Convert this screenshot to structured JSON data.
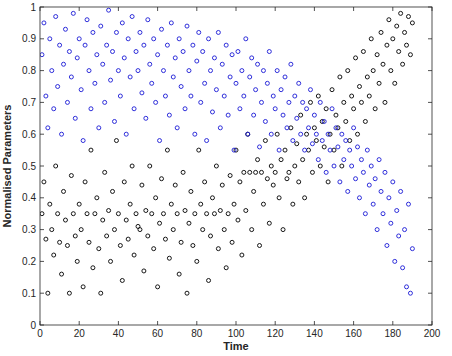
{
  "chart_data": {
    "type": "scatter",
    "x_label": "Time",
    "y_label": "Normalised Parameters",
    "xlim": [
      0,
      200
    ],
    "ylim": [
      0,
      1
    ],
    "xticks": [
      0,
      20,
      40,
      60,
      80,
      100,
      120,
      140,
      160,
      180,
      200
    ],
    "yticks": [
      0,
      0.1,
      0.2,
      0.3,
      0.4,
      0.5,
      0.6,
      0.7,
      0.8,
      0.9,
      1
    ],
    "grid": false,
    "series": [
      {
        "color": "#000000",
        "marker": "circle",
        "x": [
          1,
          2,
          3,
          4,
          5,
          6,
          7,
          8,
          9,
          10,
          11,
          12,
          13,
          14,
          15,
          16,
          17,
          18,
          19,
          20,
          21,
          22,
          23,
          24,
          25,
          26,
          27,
          28,
          29,
          30,
          31,
          32,
          33,
          34,
          35,
          36,
          37,
          38,
          39,
          40,
          41,
          42,
          43,
          44,
          45,
          46,
          47,
          48,
          49,
          50,
          51,
          52,
          53,
          54,
          55,
          56,
          57,
          58,
          59,
          60,
          61,
          62,
          63,
          64,
          65,
          66,
          67,
          68,
          69,
          70,
          71,
          72,
          73,
          74,
          75,
          76,
          77,
          78,
          79,
          80,
          81,
          82,
          83,
          84,
          85,
          86,
          87,
          88,
          89,
          90,
          91,
          92,
          93,
          94,
          95,
          96,
          97,
          98,
          99,
          100,
          101,
          102,
          103,
          104,
          105,
          106,
          107,
          108,
          109,
          110,
          111,
          112,
          113,
          114,
          115,
          116,
          117,
          118,
          119,
          120,
          121,
          122,
          123,
          124,
          125,
          126,
          127,
          128,
          129,
          130,
          131,
          132,
          133,
          134,
          135,
          136,
          137,
          138,
          139,
          140,
          141,
          142,
          143,
          144,
          145,
          146,
          147,
          148,
          149,
          150,
          151,
          152,
          153,
          154,
          155,
          156,
          157,
          158,
          159,
          160,
          161,
          162,
          163,
          164,
          165,
          166,
          167,
          168,
          169,
          170,
          171,
          172,
          173,
          174,
          175,
          176,
          177,
          178,
          179,
          180,
          181,
          182,
          183,
          184,
          185,
          186,
          187,
          188,
          189,
          190
        ],
        "values": [
          0.35,
          0.45,
          0.27,
          0.1,
          0.38,
          0.3,
          0.22,
          0.5,
          0.35,
          0.26,
          0.16,
          0.42,
          0.33,
          0.25,
          0.1,
          0.47,
          0.35,
          0.28,
          0.2,
          0.38,
          0.3,
          0.12,
          0.45,
          0.35,
          0.26,
          0.55,
          0.18,
          0.35,
          0.4,
          0.24,
          0.1,
          0.33,
          0.48,
          0.28,
          0.36,
          0.2,
          0.42,
          0.3,
          0.58,
          0.35,
          0.25,
          0.14,
          0.45,
          0.33,
          0.27,
          0.38,
          0.5,
          0.22,
          0.35,
          0.31,
          0.3,
          0.44,
          0.17,
          0.36,
          0.28,
          0.5,
          0.35,
          0.24,
          0.4,
          0.12,
          0.32,
          0.46,
          0.35,
          0.27,
          0.55,
          0.21,
          0.38,
          0.3,
          0.44,
          0.35,
          0.16,
          0.26,
          0.48,
          0.36,
          0.1,
          0.32,
          0.42,
          0.25,
          0.35,
          0.2,
          0.55,
          0.38,
          0.3,
          0.45,
          0.35,
          0.14,
          0.28,
          0.4,
          0.35,
          0.5,
          0.24,
          0.36,
          0.44,
          0.3,
          0.18,
          0.35,
          0.47,
          0.26,
          0.38,
          0.55,
          0.33,
          0.45,
          0.22,
          0.48,
          0.36,
          0.6,
          0.48,
          0.3,
          0.42,
          0.48,
          0.52,
          0.25,
          0.48,
          0.38,
          0.58,
          0.46,
          0.32,
          0.5,
          0.44,
          0.48,
          0.6,
          0.4,
          0.52,
          0.3,
          0.55,
          0.46,
          0.48,
          0.62,
          0.38,
          0.5,
          0.57,
          0.45,
          0.66,
          0.52,
          0.4,
          0.6,
          0.55,
          0.7,
          0.48,
          0.62,
          0.58,
          0.72,
          0.5,
          0.64,
          0.56,
          0.68,
          0.45,
          0.6,
          0.74,
          0.55,
          0.66,
          0.62,
          0.78,
          0.5,
          0.7,
          0.64,
          0.8,
          0.58,
          0.72,
          0.68,
          0.84,
          0.6,
          0.75,
          0.7,
          0.86,
          0.64,
          0.78,
          0.72,
          0.9,
          0.8,
          0.68,
          0.85,
          0.76,
          0.92,
          0.82,
          0.7,
          0.88,
          0.96,
          0.8,
          0.9,
          0.76,
          0.94,
          0.86,
          0.98,
          0.82,
          0.92,
          0.88,
          0.97,
          0.85,
          0.95
        ]
      },
      {
        "color": "#1a1ad6",
        "marker": "circle",
        "x": [
          1,
          2,
          3,
          4,
          5,
          6,
          7,
          8,
          9,
          10,
          11,
          12,
          13,
          14,
          15,
          16,
          17,
          18,
          19,
          20,
          21,
          22,
          23,
          24,
          25,
          26,
          27,
          28,
          29,
          30,
          31,
          32,
          33,
          34,
          35,
          36,
          37,
          38,
          39,
          40,
          41,
          42,
          43,
          44,
          45,
          46,
          47,
          48,
          49,
          50,
          51,
          52,
          53,
          54,
          55,
          56,
          57,
          58,
          59,
          60,
          61,
          62,
          63,
          64,
          65,
          66,
          67,
          68,
          69,
          70,
          71,
          72,
          73,
          74,
          75,
          76,
          77,
          78,
          79,
          80,
          81,
          82,
          83,
          84,
          85,
          86,
          87,
          88,
          89,
          90,
          91,
          92,
          93,
          94,
          95,
          96,
          97,
          98,
          99,
          100,
          101,
          102,
          103,
          104,
          105,
          106,
          107,
          108,
          109,
          110,
          111,
          112,
          113,
          114,
          115,
          116,
          117,
          118,
          119,
          120,
          121,
          122,
          123,
          124,
          125,
          126,
          127,
          128,
          129,
          130,
          131,
          132,
          133,
          134,
          135,
          136,
          137,
          138,
          139,
          140,
          141,
          142,
          143,
          144,
          145,
          146,
          147,
          148,
          149,
          150,
          151,
          152,
          153,
          154,
          155,
          156,
          157,
          158,
          159,
          160,
          161,
          162,
          163,
          164,
          165,
          166,
          167,
          168,
          169,
          170,
          171,
          172,
          173,
          174,
          175,
          176,
          177,
          178,
          179,
          180,
          181,
          182,
          183,
          184,
          185,
          186,
          187,
          188,
          189,
          190
        ],
        "values": [
          0.85,
          0.95,
          0.72,
          0.62,
          0.9,
          0.8,
          0.68,
          0.97,
          0.75,
          0.88,
          0.6,
          0.82,
          0.93,
          0.7,
          0.86,
          0.78,
          0.98,
          0.65,
          0.84,
          0.9,
          0.74,
          0.58,
          0.88,
          0.96,
          0.8,
          0.68,
          0.92,
          0.76,
          0.85,
          0.62,
          0.94,
          0.82,
          0.7,
          0.88,
          0.99,
          0.77,
          0.86,
          0.64,
          0.92,
          0.8,
          0.72,
          0.95,
          0.84,
          0.6,
          0.9,
          0.78,
          0.97,
          0.68,
          0.86,
          0.8,
          0.92,
          0.73,
          0.88,
          0.65,
          0.96,
          0.82,
          0.76,
          0.9,
          0.7,
          0.85,
          0.58,
          0.93,
          0.8,
          0.72,
          0.88,
          0.66,
          0.95,
          0.78,
          0.84,
          0.62,
          0.9,
          0.75,
          0.86,
          0.68,
          0.94,
          0.8,
          0.72,
          0.88,
          0.6,
          0.83,
          0.92,
          0.7,
          0.86,
          0.76,
          0.58,
          0.9,
          0.8,
          0.67,
          0.84,
          0.74,
          0.92,
          0.62,
          0.82,
          0.72,
          0.88,
          0.66,
          0.78,
          0.85,
          0.55,
          0.76,
          0.86,
          0.68,
          0.8,
          0.72,
          0.9,
          0.6,
          0.78,
          0.84,
          0.66,
          0.74,
          0.82,
          0.56,
          0.7,
          0.8,
          0.64,
          0.76,
          0.86,
          0.6,
          0.72,
          0.68,
          0.8,
          0.55,
          0.74,
          0.66,
          0.78,
          0.62,
          0.7,
          0.82,
          0.58,
          0.72,
          0.65,
          0.76,
          0.6,
          0.7,
          0.55,
          0.68,
          0.62,
          0.74,
          0.57,
          0.66,
          0.6,
          0.52,
          0.7,
          0.58,
          0.64,
          0.48,
          0.6,
          0.55,
          0.68,
          0.5,
          0.62,
          0.56,
          0.45,
          0.6,
          0.52,
          0.58,
          0.42,
          0.55,
          0.5,
          0.62,
          0.46,
          0.56,
          0.4,
          0.52,
          0.48,
          0.35,
          0.55,
          0.44,
          0.5,
          0.38,
          0.46,
          0.3,
          0.52,
          0.42,
          0.35,
          0.48,
          0.25,
          0.4,
          0.32,
          0.45,
          0.2,
          0.36,
          0.28,
          0.42,
          0.18,
          0.3,
          0.12,
          0.38,
          0.1,
          0.24
        ]
      }
    ]
  }
}
